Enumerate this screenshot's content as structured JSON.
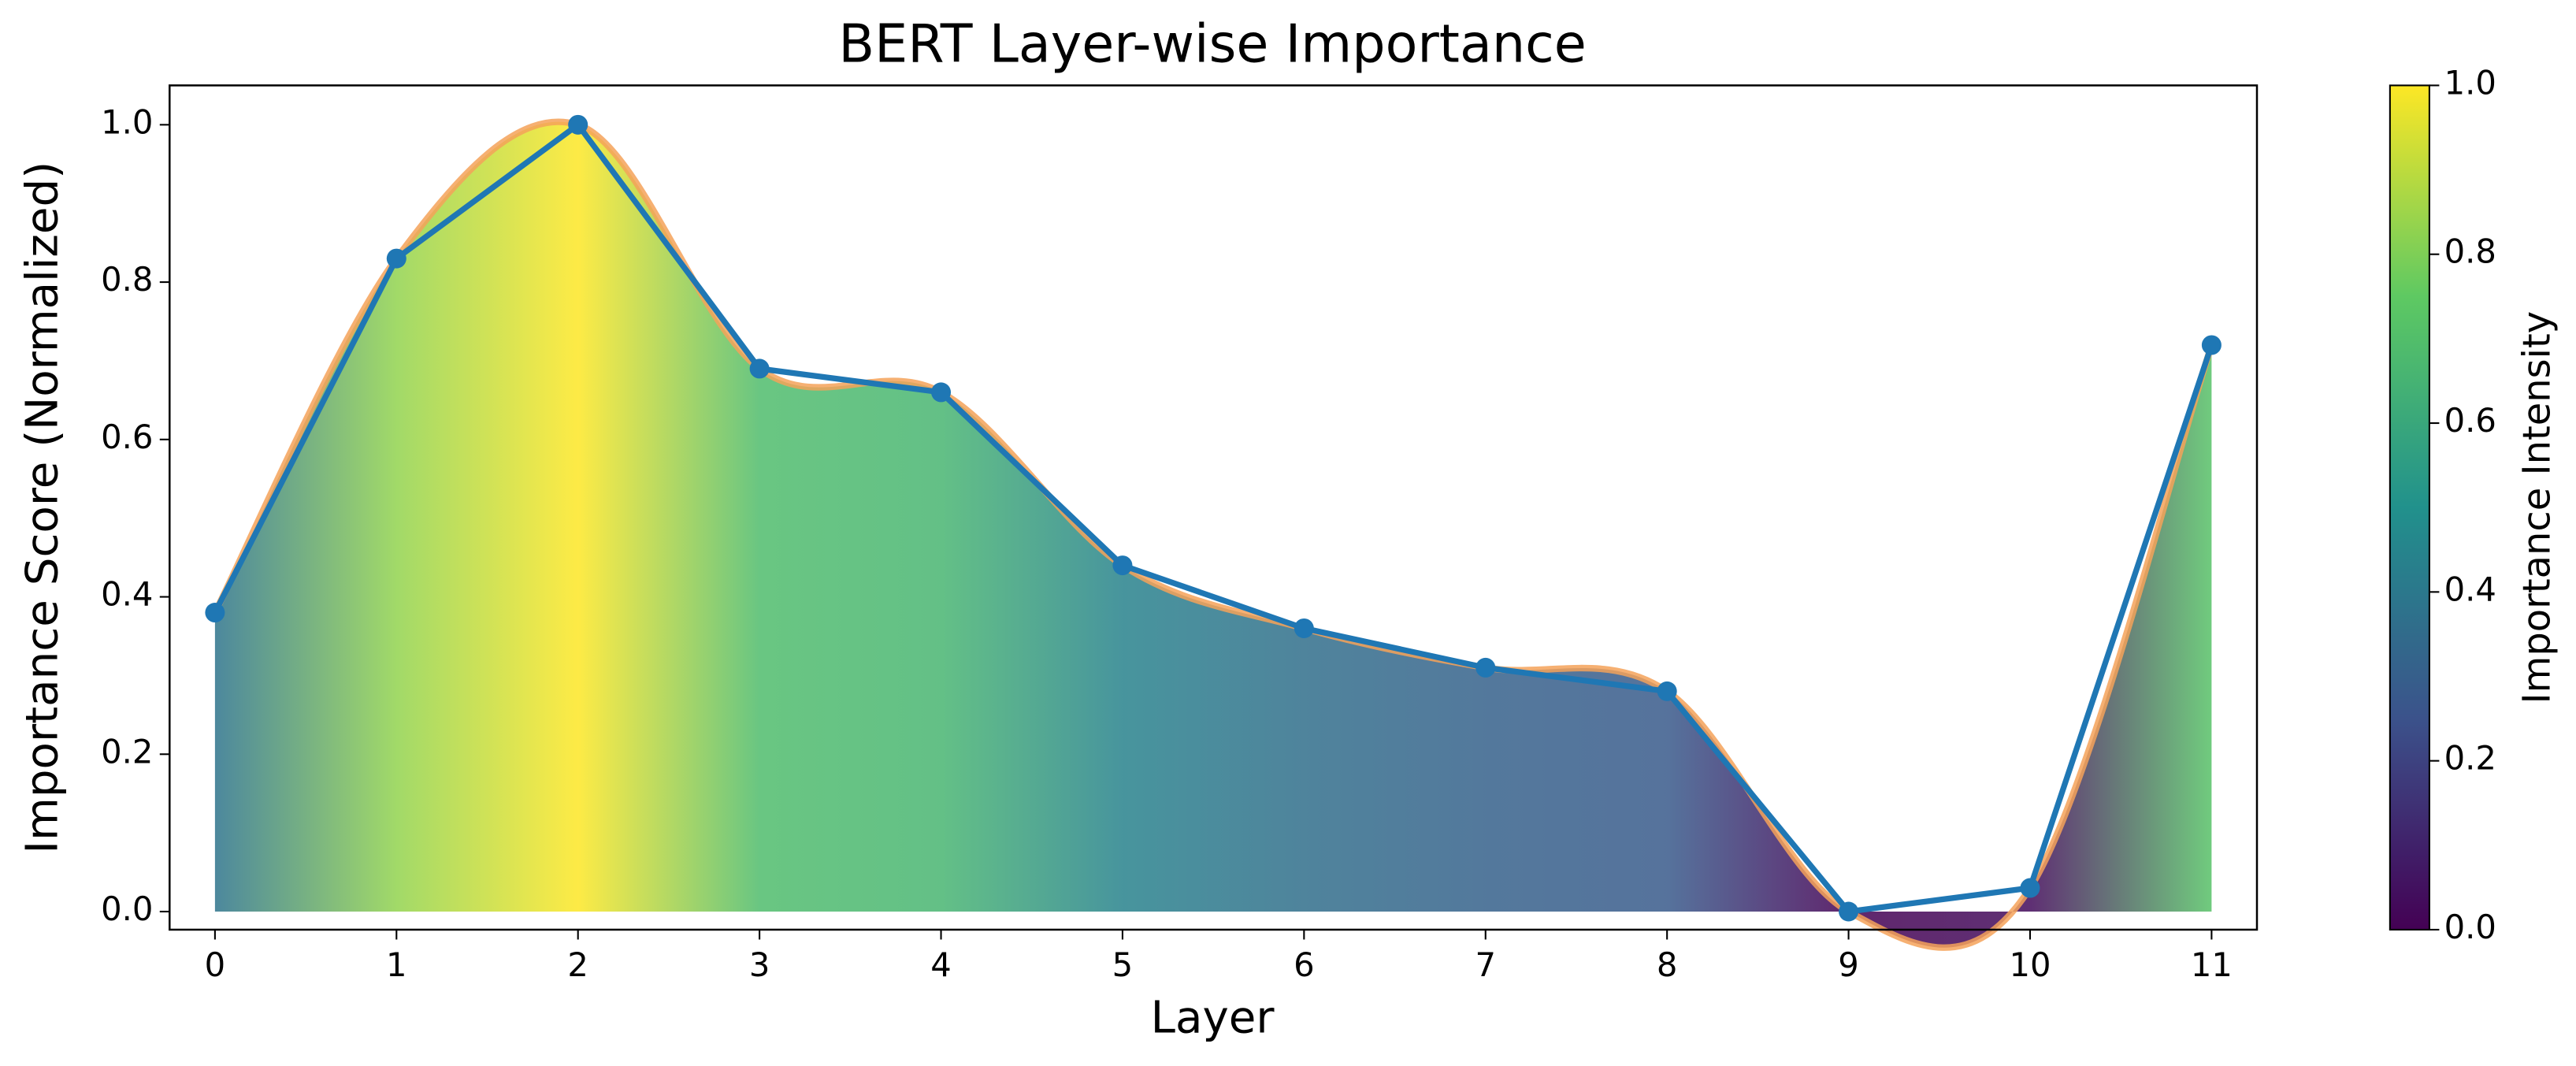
{
  "chart_data": {
    "type": "line",
    "title": "BERT Layer-wise Importance",
    "x_label": "Layer",
    "y_label": "Importance Score (Normalized)",
    "x": [
      0,
      1,
      2,
      3,
      4,
      5,
      6,
      7,
      8,
      9,
      10,
      11
    ],
    "series": [
      {
        "color": "#1f77b4",
        "values": [
          0.38,
          0.83,
          1.0,
          0.69,
          0.66,
          0.44,
          0.36,
          0.31,
          0.28,
          0.0,
          0.03,
          0.72
        ]
      }
    ],
    "smooth_color": "#f4a259",
    "xlim": [
      -0.25,
      11.25
    ],
    "xticks": [
      0,
      1,
      2,
      3,
      4,
      5,
      6,
      7,
      8,
      9,
      10,
      11
    ],
    "ylim": [
      -0.023,
      1.05
    ],
    "yticks": [
      {
        "value": 0,
        "label": "0.0"
      },
      {
        "value": 0.2,
        "label": "0.2"
      },
      {
        "value": 0.4,
        "label": "0.4"
      },
      {
        "value": 0.6,
        "label": "0.6"
      },
      {
        "value": 0.8,
        "label": "0.8"
      },
      {
        "value": 1,
        "label": "1.0"
      }
    ],
    "colorbar": {
      "label": "Importance Intensity",
      "lim": [
        0,
        1
      ],
      "ticks": [
        {
          "value": 0,
          "label": "0.0"
        },
        {
          "value": 0.2,
          "label": "0.2"
        },
        {
          "value": 0.4,
          "label": "0.4"
        },
        {
          "value": 0.6,
          "label": "0.6"
        },
        {
          "value": 0.8,
          "label": "0.8"
        },
        {
          "value": 1,
          "label": "1.0"
        }
      ]
    }
  }
}
